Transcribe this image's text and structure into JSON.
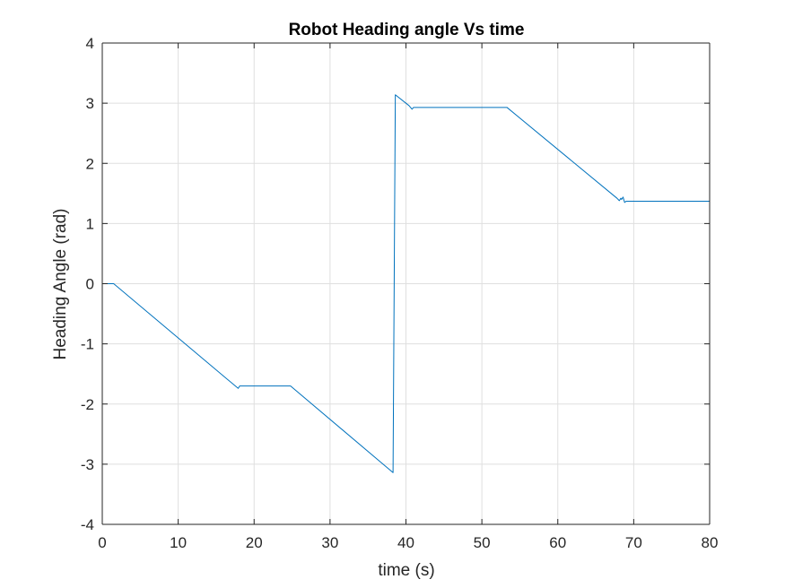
{
  "chart_data": {
    "type": "line",
    "title": "Robot Heading angle Vs time",
    "xlabel": "time (s)",
    "ylabel": "Heading Angle (rad)",
    "xlim": [
      0,
      80
    ],
    "ylim": [
      -4,
      4
    ],
    "xticks": [
      0,
      10,
      20,
      30,
      40,
      50,
      60,
      70,
      80
    ],
    "yticks": [
      -4,
      -3,
      -2,
      -1,
      0,
      1,
      2,
      3,
      4
    ],
    "xtick_labels": [
      "0",
      "10",
      "20",
      "30",
      "40",
      "50",
      "60",
      "70",
      "80"
    ],
    "ytick_labels": [
      "-4",
      "-3",
      "-2",
      "-1",
      "0",
      "1",
      "2",
      "3",
      "4"
    ],
    "grid": true,
    "legend": "none",
    "line_color": "#0072BD",
    "series": [
      {
        "x": [
          0,
          1.5,
          17.9,
          18.1,
          18.3,
          24.8,
          38.3,
          38.45,
          38.6,
          40.4,
          40.8,
          41.0,
          53.3,
          67.8,
          68.1,
          68.3,
          68.4,
          68.6,
          68.8,
          69.0,
          80
        ],
        "y": [
          0,
          0,
          -1.74,
          -1.7,
          -1.7,
          -1.7,
          -3.14,
          0.0,
          3.14,
          2.96,
          2.9,
          2.93,
          2.93,
          1.42,
          1.38,
          1.42,
          1.4,
          1.44,
          1.35,
          1.37,
          1.37
        ]
      }
    ]
  }
}
